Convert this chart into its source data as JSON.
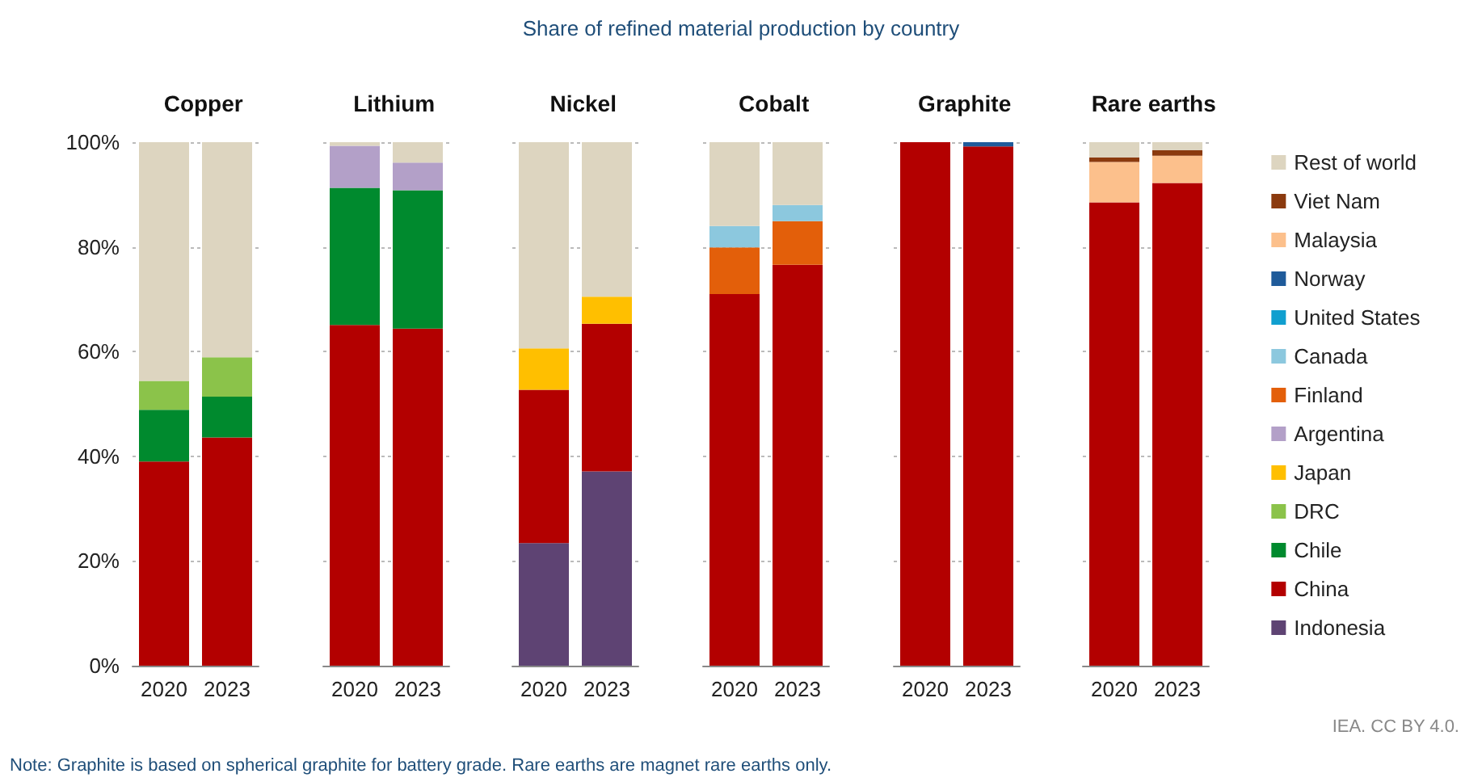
{
  "chart_data": [
    {
      "type": "bar",
      "title": "Copper",
      "categories": [
        "2020",
        "2023"
      ],
      "stacked": true,
      "ylim": [
        0,
        100
      ],
      "yticks": [
        {
          "value": 0,
          "label": "0%"
        },
        {
          "value": 20,
          "label": "20%"
        },
        {
          "value": 40,
          "label": "40%"
        },
        {
          "value": 60,
          "label": "60%"
        },
        {
          "value": 80,
          "label": "80%"
        },
        {
          "value": 100,
          "label": "100%"
        }
      ],
      "grid": "y",
      "annotations": [
        "Share of refined material production by country",
        "IEA. CC BY 4.0.",
        "Note: Graphite is based on spherical graphite for battery grade. Rare earths are magnet rare earths only."
      ],
      "series": [
        {
          "color": "#b30000",
          "values": [
            39.0,
            43.6
          ]
        },
        {
          "color": "#008a2e",
          "values": [
            9.9,
            7.8
          ]
        },
        {
          "color": "#8bc34a",
          "values": [
            5.5,
            7.5
          ]
        },
        {
          "color": "#ddd5c0",
          "values": [
            45.6,
            41.1
          ]
        }
      ]
    },
    {
      "type": "bar",
      "title": "Lithium",
      "categories": [
        "2020",
        "2023"
      ],
      "stacked": true,
      "ylim": [
        0,
        100
      ],
      "grid": "y",
      "tick_labels": "x",
      "series": [
        {
          "color": "#b30000",
          "values": [
            65.1,
            64.4
          ]
        },
        {
          "color": "#008a2e",
          "values": [
            26.2,
            26.4
          ]
        },
        {
          "color": "#b3a0c8",
          "values": [
            8.0,
            5.3
          ]
        },
        {
          "color": "#ddd5c0",
          "values": [
            0.7,
            3.9
          ]
        }
      ]
    },
    {
      "type": "bar",
      "title": "Nickel",
      "categories": [
        "2020",
        "2023"
      ],
      "stacked": true,
      "ylim": [
        0,
        100
      ],
      "grid": "y",
      "tick_labels": "x",
      "series": [
        {
          "color": "#5e4373",
          "values": [
            23.4,
            37.1
          ]
        },
        {
          "color": "#b30000",
          "values": [
            29.3,
            28.2
          ]
        },
        {
          "color": "#ffbf00",
          "values": [
            7.9,
            5.2
          ]
        },
        {
          "color": "#ddd5c0",
          "values": [
            39.4,
            29.5
          ]
        }
      ]
    },
    {
      "type": "bar",
      "title": "Cobalt",
      "categories": [
        "2020",
        "2023"
      ],
      "stacked": true,
      "ylim": [
        0,
        100
      ],
      "grid": "y",
      "tick_labels": "x",
      "series": [
        {
          "color": "#b30000",
          "values": [
            71.0,
            76.6
          ]
        },
        {
          "color": "#e35f0a",
          "values": [
            8.9,
            8.3
          ]
        },
        {
          "color": "#8cc8de",
          "values": [
            4.1,
            3.1
          ]
        },
        {
          "color": "#ddd5c0",
          "values": [
            16.0,
            12.0
          ]
        }
      ]
    },
    {
      "type": "bar",
      "title": "Graphite",
      "categories": [
        "2020",
        "2023"
      ],
      "stacked": true,
      "ylim": [
        0,
        100
      ],
      "grid": "y",
      "tick_labels": "x",
      "series": [
        {
          "color": "#b30000",
          "values": [
            100,
            99.2
          ]
        },
        {
          "color": "#1f5b9a",
          "values": [
            null,
            0.8
          ]
        }
      ]
    },
    {
      "type": "bar",
      "title": "Rare earths",
      "categories": [
        "2020",
        "2023"
      ],
      "stacked": true,
      "ylim": [
        0,
        100
      ],
      "grid": "y",
      "legend": "right",
      "tick_labels": "x",
      "series": [
        {
          "name": "Indonesia",
          "color": "#5e4373",
          "values": [
            null,
            null
          ]
        },
        {
          "name": "China",
          "color": "#b30000",
          "values": [
            88.5,
            92.2
          ]
        },
        {
          "name": "Chile",
          "color": "#008a2e",
          "values": [
            null,
            null
          ]
        },
        {
          "name": "DRC",
          "color": "#8bc34a",
          "values": [
            null,
            null
          ]
        },
        {
          "name": "Japan",
          "color": "#ffbf00",
          "values": [
            null,
            null
          ]
        },
        {
          "name": "Argentina",
          "color": "#b3a0c8",
          "values": [
            null,
            null
          ]
        },
        {
          "name": "Finland",
          "color": "#e35f0a",
          "values": [
            null,
            null
          ]
        },
        {
          "name": "Canada",
          "color": "#8cc8de",
          "values": [
            null,
            null
          ]
        },
        {
          "name": "United States",
          "color": "#109fcf",
          "values": [
            null,
            null
          ]
        },
        {
          "name": "Norway",
          "color": "#1f5b9a",
          "values": [
            null,
            null
          ]
        },
        {
          "name": "Malaysia",
          "color": "#fcc08c",
          "values": [
            7.7,
            5.2
          ]
        },
        {
          "name": "Viet Nam",
          "color": "#8b3a0e",
          "values": [
            0.9,
            1.1
          ]
        },
        {
          "name": "Rest of world",
          "color": "#ddd5c0",
          "values": [
            2.9,
            1.5
          ]
        }
      ]
    }
  ]
}
